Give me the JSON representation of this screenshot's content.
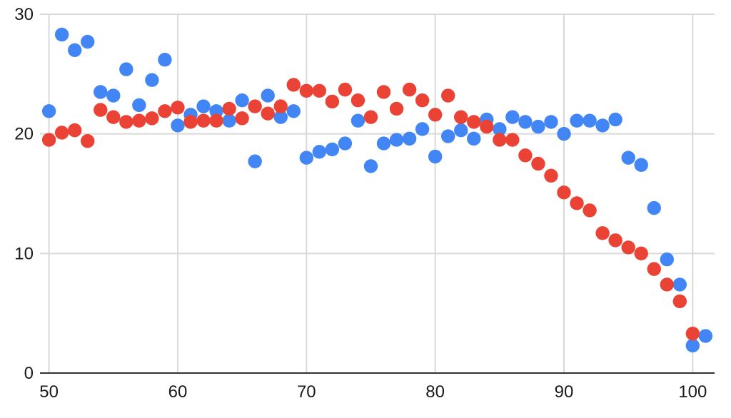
{
  "chart_data": {
    "type": "scatter",
    "title": "",
    "xlabel": "",
    "ylabel": "",
    "xlim": [
      49.3,
      101.7
    ],
    "ylim": [
      0,
      30
    ],
    "x_ticks": [
      50,
      60,
      70,
      80,
      90,
      100
    ],
    "y_ticks": [
      0,
      10,
      20,
      30
    ],
    "grid": true,
    "legend_position": "none",
    "background_color": "#ffffff",
    "gridline_color": "#d9d9d9",
    "axis_line_color": "#333333",
    "tick_label_color": "#1a1a1a",
    "point_radius": 9.7,
    "series": [
      {
        "name": "series-1-blue",
        "color": "#4285F4",
        "points": [
          [
            50,
            21.9
          ],
          [
            51,
            28.3
          ],
          [
            52,
            27.0
          ],
          [
            53,
            27.7
          ],
          [
            54,
            23.5
          ],
          [
            55,
            23.2
          ],
          [
            56,
            25.4
          ],
          [
            57,
            22.4
          ],
          [
            58,
            24.5
          ],
          [
            59,
            26.2
          ],
          [
            60,
            20.7
          ],
          [
            61,
            21.6
          ],
          [
            62,
            22.3
          ],
          [
            63,
            21.9
          ],
          [
            64,
            21.1
          ],
          [
            65,
            22.8
          ],
          [
            66,
            17.7
          ],
          [
            67,
            23.2
          ],
          [
            68,
            21.4
          ],
          [
            69,
            21.9
          ],
          [
            70,
            18.0
          ],
          [
            71,
            18.5
          ],
          [
            72,
            18.7
          ],
          [
            73,
            19.2
          ],
          [
            74,
            21.1
          ],
          [
            75,
            17.3
          ],
          [
            76,
            19.2
          ],
          [
            77,
            19.5
          ],
          [
            78,
            19.6
          ],
          [
            79,
            20.4
          ],
          [
            80,
            18.1
          ],
          [
            81,
            19.8
          ],
          [
            82,
            20.3
          ],
          [
            83,
            19.6
          ],
          [
            84,
            21.2
          ],
          [
            85,
            20.4
          ],
          [
            86,
            21.4
          ],
          [
            87,
            21.0
          ],
          [
            88,
            20.6
          ],
          [
            89,
            21.0
          ],
          [
            90,
            20.0
          ],
          [
            91,
            21.1
          ],
          [
            92,
            21.1
          ],
          [
            93,
            20.7
          ],
          [
            94,
            21.2
          ],
          [
            95,
            18.0
          ],
          [
            96,
            17.4
          ],
          [
            97,
            13.8
          ],
          [
            98,
            9.5
          ],
          [
            99,
            7.4
          ],
          [
            100,
            2.3
          ],
          [
            101,
            3.1
          ]
        ]
      },
      {
        "name": "series-2-red",
        "color": "#EA4335",
        "points": [
          [
            50,
            19.5
          ],
          [
            51,
            20.1
          ],
          [
            52,
            20.3
          ],
          [
            53,
            19.4
          ],
          [
            54,
            22.0
          ],
          [
            55,
            21.4
          ],
          [
            56,
            21.0
          ],
          [
            57,
            21.1
          ],
          [
            58,
            21.3
          ],
          [
            59,
            21.9
          ],
          [
            60,
            22.2
          ],
          [
            61,
            21.0
          ],
          [
            62,
            21.1
          ],
          [
            63,
            21.1
          ],
          [
            64,
            22.1
          ],
          [
            65,
            21.3
          ],
          [
            66,
            22.3
          ],
          [
            67,
            21.7
          ],
          [
            68,
            22.3
          ],
          [
            69,
            24.1
          ],
          [
            70,
            23.6
          ],
          [
            71,
            23.6
          ],
          [
            72,
            22.7
          ],
          [
            73,
            23.7
          ],
          [
            74,
            22.8
          ],
          [
            75,
            21.4
          ],
          [
            76,
            23.5
          ],
          [
            77,
            22.1
          ],
          [
            78,
            23.7
          ],
          [
            79,
            22.8
          ],
          [
            80,
            21.6
          ],
          [
            81,
            23.2
          ],
          [
            82,
            21.4
          ],
          [
            83,
            21.0
          ],
          [
            84,
            20.6
          ],
          [
            85,
            19.5
          ],
          [
            86,
            19.5
          ],
          [
            87,
            18.2
          ],
          [
            88,
            17.5
          ],
          [
            89,
            16.5
          ],
          [
            90,
            15.1
          ],
          [
            91,
            14.2
          ],
          [
            92,
            13.6
          ],
          [
            93,
            11.7
          ],
          [
            94,
            11.1
          ],
          [
            95,
            10.5
          ],
          [
            96,
            10.0
          ],
          [
            97,
            8.7
          ],
          [
            98,
            7.4
          ],
          [
            99,
            6.0
          ],
          [
            100,
            3.3
          ]
        ]
      }
    ]
  }
}
